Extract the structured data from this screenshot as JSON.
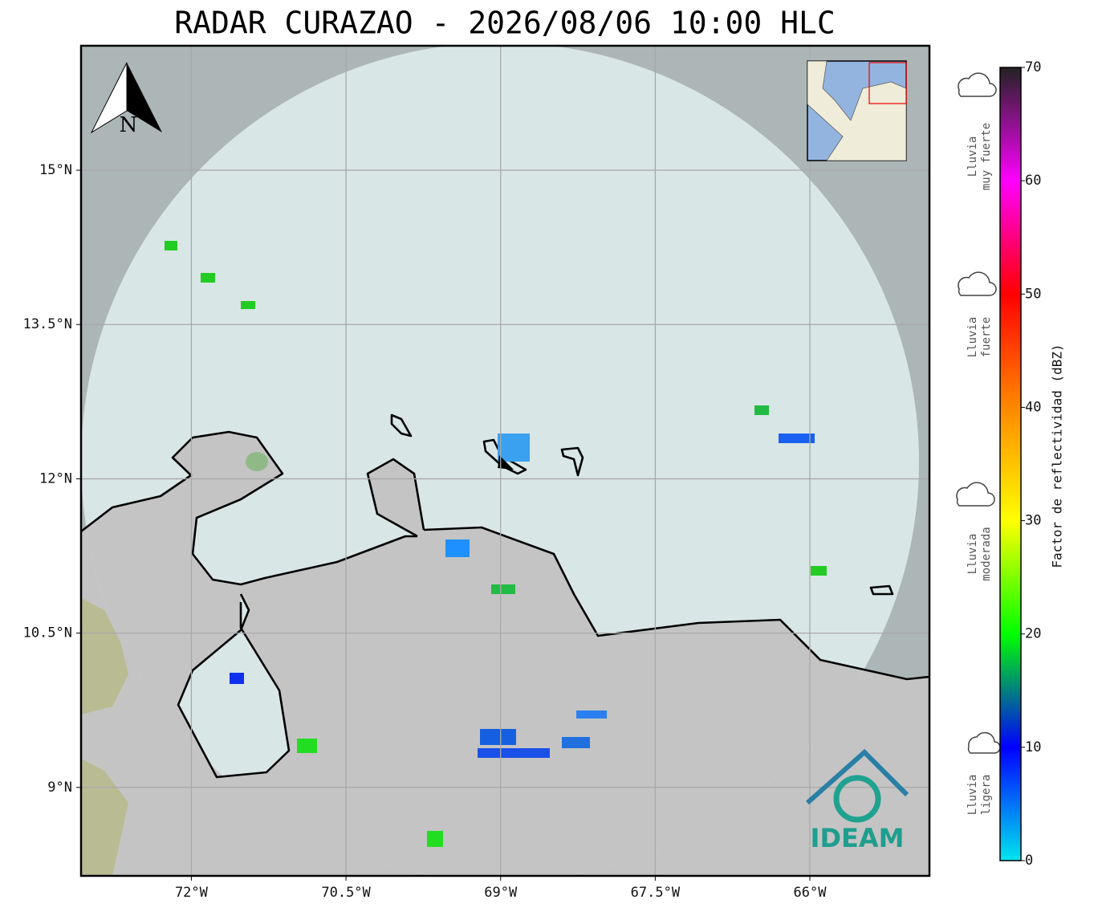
{
  "chart_data": {
    "type": "radar-map",
    "title": "RADAR CURAZAO - 2026/08/06 10:00 HLC",
    "xlim": [
      -73.07,
      -64.84
    ],
    "ylim": [
      8.14,
      16.21
    ],
    "xticks": [
      {
        "value": -72,
        "label": "72°W"
      },
      {
        "value": -70.5,
        "label": "70.5°W"
      },
      {
        "value": -69,
        "label": "69°W"
      },
      {
        "value": -67.5,
        "label": "67.5°W"
      },
      {
        "value": -66,
        "label": "66°W"
      }
    ],
    "yticks": [
      {
        "value": 9,
        "label": "9°N"
      },
      {
        "value": 10.5,
        "label": "10.5°N"
      },
      {
        "value": 12,
        "label": "12°N"
      },
      {
        "value": 13.5,
        "label": "13.5°N"
      },
      {
        "value": 15,
        "label": "15°N"
      }
    ],
    "grid": true,
    "north_label": "N",
    "logo_text": "IDEAM",
    "colorbar": {
      "label": "Factor de reflectividad (dBZ)",
      "lim": [
        0,
        70
      ],
      "ticks": [
        0,
        10,
        20,
        30,
        40,
        50,
        60,
        70
      ],
      "colors": [
        "#00e5ee",
        "#0000ff",
        "#00ff00",
        "#ffff00",
        "#ff8800",
        "#ff0000",
        "#ff00ff",
        "#222222"
      ]
    },
    "legend": [
      {
        "lines": [
          "Lluvia",
          "muy fuerte"
        ]
      },
      {
        "lines": [
          "Lluvia",
          "fuerte"
        ]
      },
      {
        "lines": [
          "Lluvia",
          "moderada"
        ]
      },
      {
        "lines": [
          "Lluvia",
          "ligera"
        ]
      }
    ]
  }
}
